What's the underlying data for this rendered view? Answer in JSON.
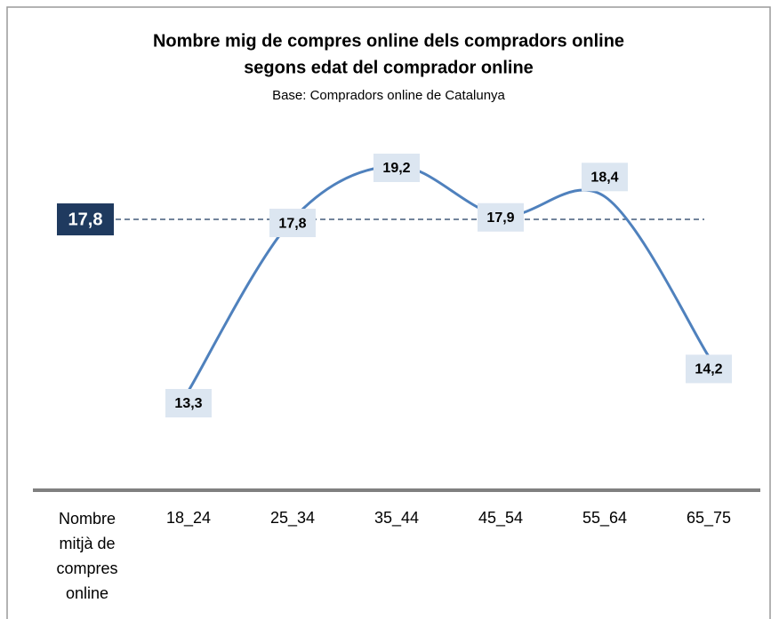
{
  "chart_data": {
    "type": "line",
    "title": [
      "Nombre mig de compres online dels compradors online",
      "segons edat del comprador online"
    ],
    "subtitle": "Base: Compradors online de Catalunya",
    "x_label": "Nombre mitjà de compres online",
    "categories": [
      "18_24",
      "25_34",
      "35_44",
      "45_54",
      "55_64",
      "65_75"
    ],
    "values": [
      13.3,
      17.8,
      19.2,
      17.9,
      18.4,
      14.2
    ],
    "value_labels": [
      "13,3",
      "17,8",
      "19,2",
      "17,9",
      "18,4",
      "14,2"
    ],
    "color": "#4f81bd",
    "average": {
      "value": 17.8,
      "label": "17,8"
    }
  }
}
